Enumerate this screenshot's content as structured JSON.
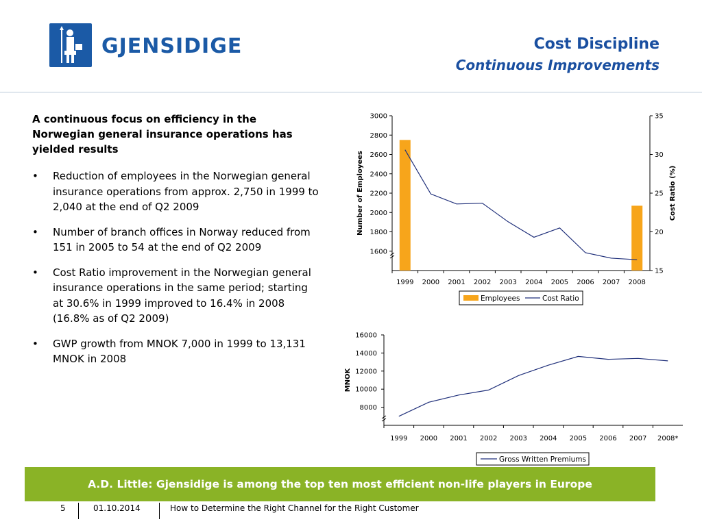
{
  "header": {
    "brand": "GJENSIDIGE",
    "title": "Cost Discipline",
    "subtitle": "Continuous Improvements",
    "brand_color": "#1b5aa6",
    "title_color": "#1a4fa0"
  },
  "lead": "A continuous focus on efficiency in the Norwegian general insurance operations has yielded results",
  "bullets": [
    "Reduction of employees in the Norwegian general insurance operations from approx. 2,750 in 1999 to 2,040 at the end of Q2 2009",
    "Number of branch offices in Norway reduced from 151 in 2005 to 54 at the end of Q2 2009",
    "Cost Ratio improvement in the Norwegian general insurance operations in the same period; starting at 30.6% in 1999 improved to 16.4% in 2008 (16.8% as of Q2 2009)",
    "GWP growth from MNOK 7,000 in 1999 to 13,131 MNOK in 2008"
  ],
  "bullet_symbol": "•",
  "banner": {
    "text": "A.D. Little: Gjensidige is among the top ten most efficient non-life players in Europe",
    "color": "#8ab326"
  },
  "footer": {
    "page": "5",
    "date": "01.10.2014",
    "title": "How to Determine the Right Channel for the Right Customer"
  },
  "chart_data": [
    {
      "type": "bar",
      "categories": [
        "1999",
        "2000",
        "2001",
        "2002",
        "2003",
        "2004",
        "2005",
        "2006",
        "2007",
        "2008"
      ],
      "series": [
        {
          "name": "Employees",
          "type": "bar",
          "axis": "left",
          "color": "#f7a51b",
          "values": [
            2750,
            null,
            null,
            null,
            null,
            null,
            null,
            null,
            null,
            2070
          ]
        },
        {
          "name": "Cost Ratio",
          "type": "line",
          "axis": "right",
          "color": "#1f2f7a",
          "values": [
            30.6,
            24.9,
            23.6,
            23.7,
            21.3,
            19.3,
            20.5,
            17.3,
            16.6,
            16.4
          ]
        }
      ],
      "ylabel": "Number of Employees",
      "y2label": "Cost Ratio (%)",
      "ylim": [
        1400,
        3000
      ],
      "y2lim": [
        15,
        35
      ],
      "yticks": [
        "1600",
        "1800",
        "2000",
        "2200",
        "2400",
        "2600",
        "2800",
        "3000"
      ],
      "y2ticks": [
        "15",
        "20",
        "25",
        "30",
        "35"
      ],
      "legend": [
        "Employees",
        "Cost Ratio"
      ],
      "legend_position": "bottom",
      "grid": false
    },
    {
      "type": "line",
      "categories": [
        "1999",
        "2000",
        "2001",
        "2002",
        "2003",
        "2004",
        "2005",
        "2006",
        "2007",
        "2008*"
      ],
      "series": [
        {
          "name": "Gross Written Premiums",
          "color": "#1f2f7a",
          "values": [
            7000,
            8550,
            9350,
            9900,
            11500,
            12650,
            13620,
            13300,
            13400,
            13131
          ]
        }
      ],
      "ylabel": "MNOK",
      "ylim": [
        6000,
        16000
      ],
      "yticks": [
        "8000",
        "10000",
        "12000",
        "14000",
        "16000"
      ],
      "legend": [
        "Gross Written Premiums"
      ],
      "legend_position": "bottom",
      "grid": false
    }
  ]
}
